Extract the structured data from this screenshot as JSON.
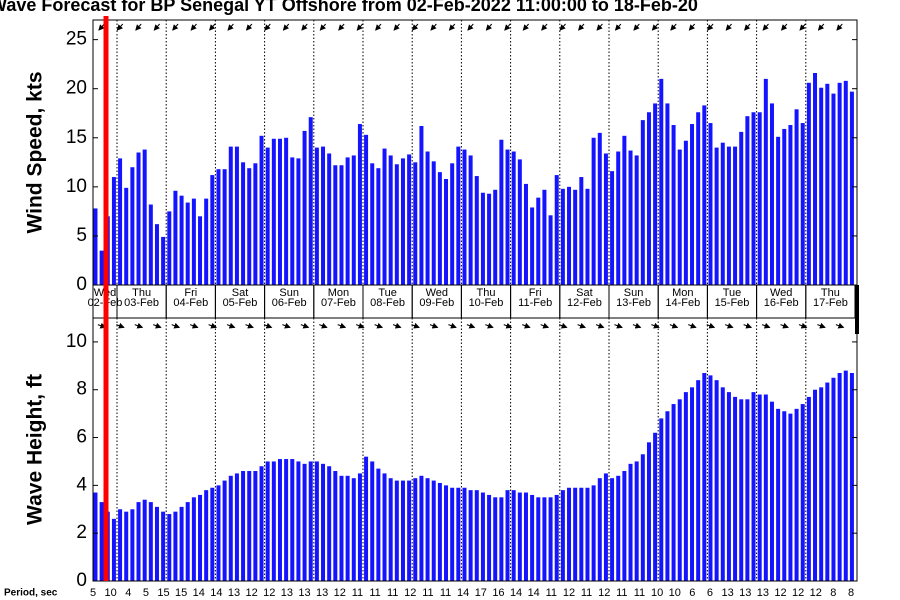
{
  "title": "Wave Forecast for BP Senegal YT Offshore from 02-Feb-2022 11:00:00 to 18-Feb-20",
  "timeline": {
    "days": [
      "Wed",
      "Thu",
      "Fri",
      "Sat",
      "Sun",
      "Mon",
      "Tue",
      "Wed",
      "Thu",
      "Fri",
      "Sat",
      "Sun",
      "Mon",
      "Tue",
      "Wed",
      "Thu"
    ],
    "dates": [
      "02-Feb",
      "03-Feb",
      "04-Feb",
      "05-Feb",
      "06-Feb",
      "07-Feb",
      "08-Feb",
      "09-Feb",
      "10-Feb",
      "11-Feb",
      "12-Feb",
      "13-Feb",
      "14-Feb",
      "15-Feb",
      "16-Feb",
      "17-Feb"
    ]
  },
  "period": {
    "label": "Period, sec",
    "values": [
      5,
      10,
      4,
      5,
      15,
      15,
      14,
      14,
      13,
      12,
      12,
      13,
      13,
      13,
      12,
      11,
      11,
      11,
      12,
      11,
      11,
      14,
      17,
      16,
      14,
      14,
      11,
      12,
      11,
      12,
      11,
      11,
      10,
      10,
      6,
      6,
      13,
      13,
      13,
      12,
      12,
      12,
      8,
      8
    ]
  },
  "chart_data": [
    {
      "type": "bar",
      "ylabel": "Wind Speed, kts",
      "color": "#1414ff",
      "ylim": [
        0,
        27
      ],
      "yticks": [
        0,
        5,
        10,
        15,
        20,
        25
      ],
      "values": [
        7.8,
        3.5,
        7.0,
        11.0,
        12.9,
        9.9,
        12.0,
        13.5,
        13.8,
        8.2,
        6.2,
        4.9,
        7.5,
        9.6,
        9.1,
        8.4,
        8.8,
        7.0,
        8.8,
        11.2,
        11.8,
        11.8,
        14.1,
        14.1,
        12.5,
        11.9,
        12.4,
        15.2,
        14.0,
        14.9,
        14.9,
        15.0,
        13.0,
        12.9,
        15.7,
        17.1,
        14.0,
        14.1,
        13.4,
        12.2,
        12.2,
        13.0,
        13.2,
        16.4,
        15.3,
        12.4,
        11.9,
        13.9,
        13.2,
        12.3,
        12.9,
        13.3,
        12.5,
        16.2,
        13.6,
        12.6,
        11.5,
        10.8,
        12.4,
        14.1,
        13.8,
        13.2,
        11.1,
        9.4,
        9.3,
        9.7,
        14.8,
        13.8,
        13.6,
        12.8,
        10.3,
        7.9,
        8.9,
        9.7,
        7.1,
        11.2,
        9.8,
        10.0,
        9.7,
        11.0,
        9.8,
        15.0,
        15.5,
        13.4,
        11.6,
        13.6,
        15.2,
        13.7,
        13.2,
        16.8,
        17.6,
        18.5,
        21.0,
        18.5,
        16.3,
        13.8,
        14.7,
        16.4,
        17.6,
        18.3,
        16.5,
        14.0,
        14.5,
        14.1,
        14.1,
        15.6,
        17.2,
        17.6,
        17.6,
        21.0,
        18.5,
        15.1,
        15.9,
        16.3,
        17.9,
        16.5,
        20.6,
        21.6,
        20.1,
        20.5,
        19.5,
        20.6,
        20.8,
        19.7
      ]
    },
    {
      "type": "bar",
      "ylabel": "Wave Height, ft",
      "color": "#1414ff",
      "ylim": [
        0,
        11
      ],
      "yticks": [
        0,
        2,
        4,
        6,
        8,
        10
      ],
      "values": [
        3.7,
        3.3,
        2.9,
        2.6,
        3.0,
        2.9,
        3.0,
        3.3,
        3.4,
        3.3,
        3.1,
        2.9,
        2.8,
        2.9,
        3.1,
        3.3,
        3.5,
        3.6,
        3.8,
        3.9,
        4.0,
        4.2,
        4.4,
        4.5,
        4.6,
        4.6,
        4.6,
        4.8,
        5.0,
        5.0,
        5.1,
        5.1,
        5.1,
        5.0,
        4.9,
        5.0,
        5.0,
        4.9,
        4.8,
        4.6,
        4.4,
        4.4,
        4.3,
        4.5,
        5.2,
        5.0,
        4.7,
        4.5,
        4.3,
        4.2,
        4.2,
        4.2,
        4.3,
        4.4,
        4.3,
        4.2,
        4.1,
        4.0,
        3.9,
        3.9,
        3.9,
        3.8,
        3.8,
        3.7,
        3.6,
        3.5,
        3.5,
        3.8,
        3.8,
        3.7,
        3.7,
        3.6,
        3.5,
        3.5,
        3.5,
        3.6,
        3.8,
        3.9,
        3.9,
        3.9,
        3.9,
        4.0,
        4.3,
        4.5,
        4.3,
        4.4,
        4.6,
        4.9,
        5.0,
        5.3,
        5.8,
        6.2,
        6.8,
        7.1,
        7.4,
        7.6,
        7.9,
        8.1,
        8.4,
        8.7,
        8.6,
        8.4,
        8.1,
        7.9,
        7.7,
        7.6,
        7.6,
        7.9,
        7.8,
        7.8,
        7.5,
        7.2,
        7.1,
        7.0,
        7.2,
        7.4,
        7.7,
        8.0,
        8.1,
        8.3,
        8.5,
        8.7,
        8.8,
        8.7
      ]
    }
  ]
}
